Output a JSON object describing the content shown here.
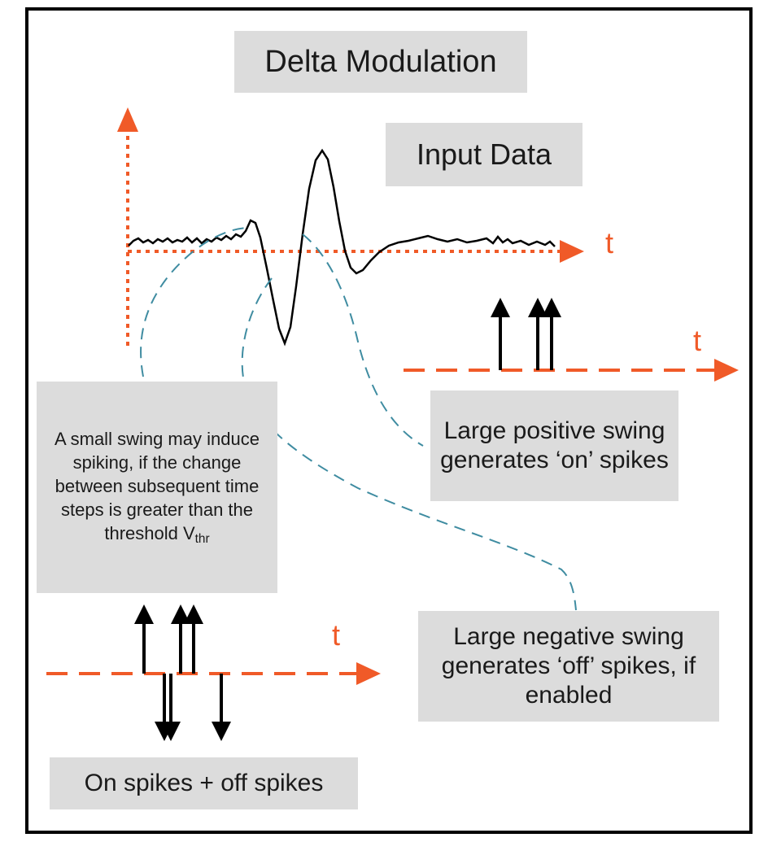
{
  "title": "Delta Modulation",
  "input_label": "Input Data",
  "axis_label": "t",
  "small_swing_text": "A small swing may induce spiking, if the change between subsequent time steps is greater than the threshold V",
  "small_swing_sub": "thr",
  "positive_swing_text": "Large positive swing generates ‘on’ spikes",
  "negative_swing_text": "Large negative swing generates ‘off’ spikes, if enabled",
  "bottom_label": "On spikes + off spikes",
  "colors": {
    "axis": "#f05a28",
    "signal": "#000000",
    "connector": "#3f8ca1",
    "box": "#dcdcdc"
  }
}
